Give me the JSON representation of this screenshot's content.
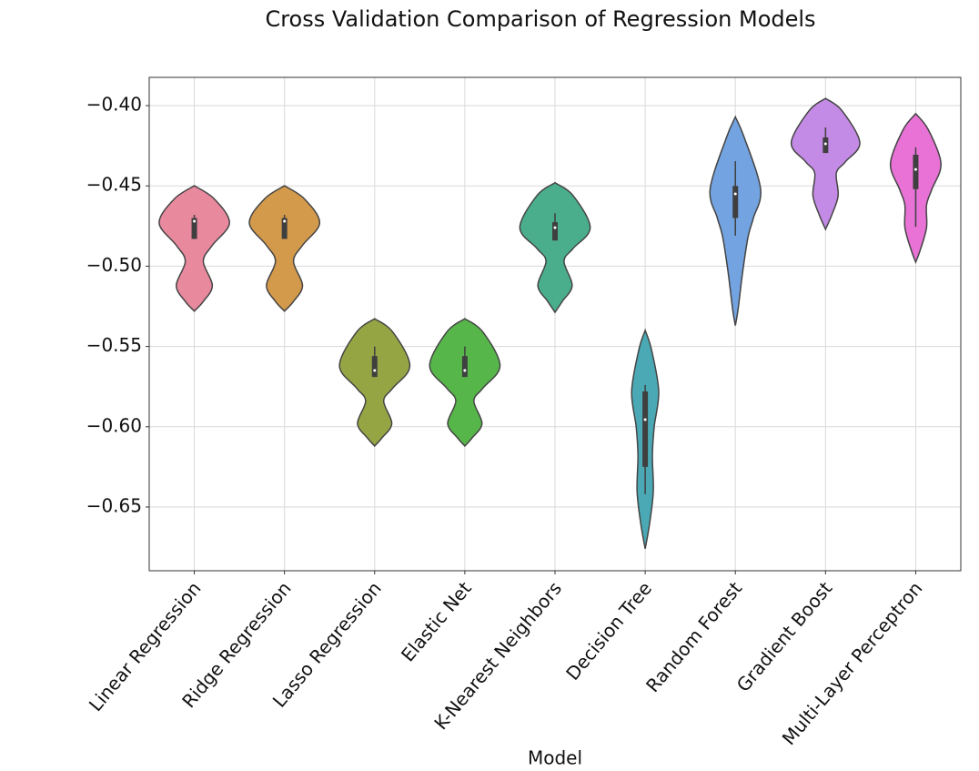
{
  "chart_data": {
    "type": "violin",
    "title": "Cross Validation Comparison of Regression Models",
    "x_label": "Model",
    "categories": [
      "Linear Regression",
      "Ridge Regression",
      "Lasso Regression",
      "Elastic Net",
      "K-Nearest Neighbors",
      "Decision Tree",
      "Random Forest",
      "Gradient Boost",
      "Multi-Layer Perceptron"
    ],
    "colors": [
      "#e8899e",
      "#d39a4c",
      "#96a544",
      "#57b64a",
      "#4aae8d",
      "#4aa9b5",
      "#73a3e0",
      "#c38be5",
      "#e872d5"
    ],
    "violins": [
      {
        "profile": [
          [
            -0.4499,
            0
          ],
          [
            -0.458,
            0.22
          ],
          [
            -0.473,
            0.39
          ],
          [
            -0.487,
            0.2
          ],
          [
            -0.497,
            0.1
          ],
          [
            -0.512,
            0.2
          ],
          [
            -0.522,
            0.1
          ],
          [
            -0.528,
            0
          ]
        ],
        "whisker": [
          -0.468,
          -0.483
        ],
        "box": [
          -0.47,
          -0.483
        ],
        "median": -0.472
      },
      {
        "profile": [
          [
            -0.4499,
            0
          ],
          [
            -0.458,
            0.22
          ],
          [
            -0.473,
            0.39
          ],
          [
            -0.487,
            0.2
          ],
          [
            -0.497,
            0.1
          ],
          [
            -0.512,
            0.2
          ],
          [
            -0.522,
            0.1
          ],
          [
            -0.528,
            0
          ]
        ],
        "whisker": [
          -0.468,
          -0.483
        ],
        "box": [
          -0.47,
          -0.483
        ],
        "median": -0.472
      },
      {
        "profile": [
          [
            -0.5327,
            0
          ],
          [
            -0.541,
            0.2
          ],
          [
            -0.562,
            0.39
          ],
          [
            -0.576,
            0.2
          ],
          [
            -0.584,
            0.1
          ],
          [
            -0.598,
            0.19
          ],
          [
            -0.607,
            0.08
          ],
          [
            -0.612,
            0
          ]
        ],
        "whisker": [
          -0.55,
          -0.569
        ],
        "box": [
          -0.556,
          -0.569
        ],
        "median": -0.565
      },
      {
        "profile": [
          [
            -0.5327,
            0
          ],
          [
            -0.541,
            0.2
          ],
          [
            -0.562,
            0.39
          ],
          [
            -0.576,
            0.2
          ],
          [
            -0.584,
            0.1
          ],
          [
            -0.598,
            0.19
          ],
          [
            -0.607,
            0.08
          ],
          [
            -0.612,
            0
          ]
        ],
        "whisker": [
          -0.55,
          -0.569
        ],
        "box": [
          -0.556,
          -0.569
        ],
        "median": -0.565
      },
      {
        "profile": [
          [
            -0.448,
            0
          ],
          [
            -0.456,
            0.2
          ],
          [
            -0.476,
            0.39
          ],
          [
            -0.489,
            0.2
          ],
          [
            -0.497,
            0.1
          ],
          [
            -0.512,
            0.19
          ],
          [
            -0.522,
            0.08
          ],
          [
            -0.5287,
            0
          ]
        ],
        "whisker": [
          -0.467,
          -0.484
        ],
        "box": [
          -0.4726,
          -0.484
        ],
        "median": -0.476
      },
      {
        "profile": [
          [
            -0.54,
            0
          ],
          [
            -0.552,
            0.07
          ],
          [
            -0.578,
            0.15
          ],
          [
            -0.6,
            0.1
          ],
          [
            -0.618,
            0.08
          ],
          [
            -0.64,
            0.09
          ],
          [
            -0.66,
            0.05
          ],
          [
            -0.676,
            0
          ]
        ],
        "whisker": [
          -0.574,
          -0.642
        ],
        "box": [
          -0.578,
          -0.625
        ],
        "median": -0.5956
      },
      {
        "profile": [
          [
            -0.407,
            0
          ],
          [
            -0.42,
            0.1
          ],
          [
            -0.452,
            0.28
          ],
          [
            -0.47,
            0.2
          ],
          [
            -0.482,
            0.14
          ],
          [
            -0.504,
            0.08
          ],
          [
            -0.527,
            0.03
          ],
          [
            -0.537,
            0
          ]
        ],
        "whisker": [
          -0.4346,
          -0.481
        ],
        "box": [
          -0.45,
          -0.47
        ],
        "median": -0.455
      },
      {
        "profile": [
          [
            -0.3955,
            0
          ],
          [
            -0.403,
            0.18
          ],
          [
            -0.423,
            0.38
          ],
          [
            -0.435,
            0.22
          ],
          [
            -0.442,
            0.12
          ],
          [
            -0.456,
            0.14
          ],
          [
            -0.468,
            0.07
          ],
          [
            -0.477,
            0
          ]
        ],
        "whisker": [
          -0.4136,
          -0.4295
        ],
        "box": [
          -0.4198,
          -0.4295
        ],
        "median": -0.4238
      },
      {
        "profile": [
          [
            -0.405,
            0
          ],
          [
            -0.415,
            0.14
          ],
          [
            -0.436,
            0.28
          ],
          [
            -0.452,
            0.18
          ],
          [
            -0.462,
            0.12
          ],
          [
            -0.476,
            0.12
          ],
          [
            -0.49,
            0.05
          ],
          [
            -0.4975,
            0
          ]
        ],
        "whisker": [
          -0.426,
          -0.4755
        ],
        "box": [
          -0.4306,
          -0.452
        ],
        "median": -0.4397
      }
    ],
    "ylim": [
      -0.6897,
      -0.3824
    ],
    "yticks": [
      {
        "value": -0.4,
        "label": "−0.40"
      },
      {
        "value": -0.45,
        "label": "−0.45"
      },
      {
        "value": -0.5,
        "label": "−0.50"
      },
      {
        "value": -0.55,
        "label": "−0.55"
      },
      {
        "value": -0.6,
        "label": "−0.60"
      },
      {
        "value": -0.65,
        "label": "−0.65"
      }
    ],
    "grid": true
  }
}
